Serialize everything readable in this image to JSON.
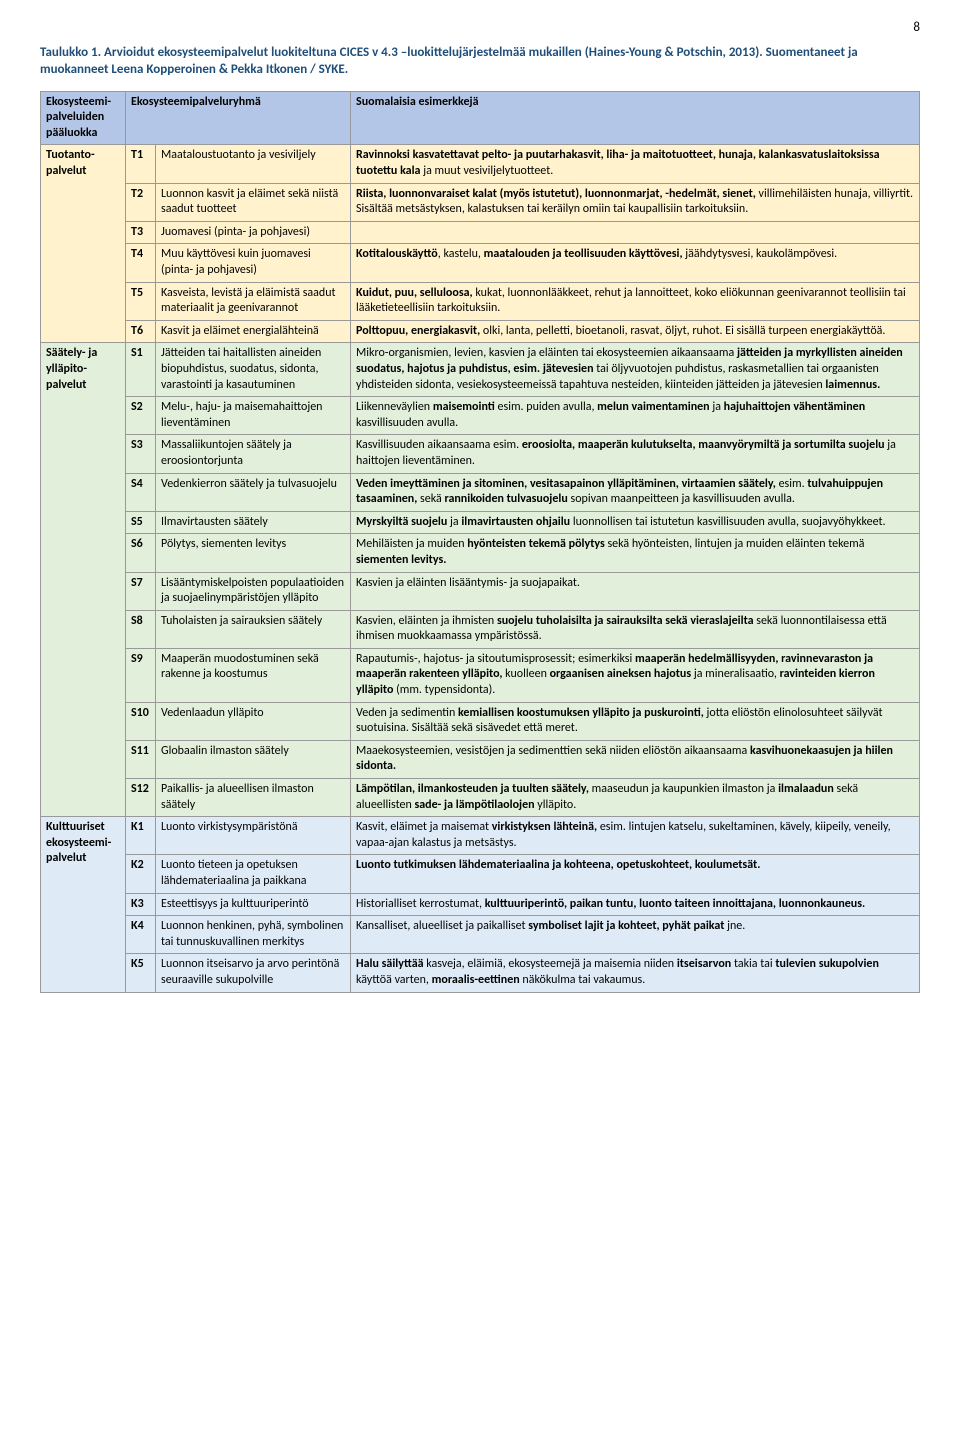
{
  "pageNumber": "8",
  "caption": "Taulukko 1. Arvioidut ekosysteemipalvelut luokiteltuna CICES v 4.3 –luokittelujärjestelmää mukaillen (Haines-Young & Potschin, 2013). Suomentaneet ja muokanneet Leena Kopperoinen & Pekka Itkonen / SYKE.",
  "header": {
    "col1": "Ekosysteemi-palveluiden pääluokka",
    "col2": "Ekosysteemipalveluryhmä",
    "col3": "Suomalaisia esimerkkejä"
  },
  "cats": [
    {
      "label": "Tuotanto-palvelut",
      "rows": [
        {
          "code": "T1",
          "group": "Maataloustuotanto ja vesiviljely",
          "ex": "<b>Ravinnoksi kasvatettavat pelto- ja puutarhakasvit, liha- ja maitotuotteet, hunaja, kalankasvatuslaitoksissa tuotettu kala</b> ja muut vesiviljelytuotteet."
        },
        {
          "code": "T2",
          "group": "Luonnon kasvit ja eläimet sekä niistä saadut tuotteet",
          "ex": "<b>Riista, luonnonvaraiset kalat (myös istutetut), luonnonmarjat, -hedelmät, sienet,</b> villimehiläisten hunaja, villiyrtit. Sisältää metsästyksen, kalastuksen tai keräilyn omiin tai kaupallisiin tarkoituksiin."
        },
        {
          "code": "T3",
          "group": "Juomavesi (pinta- ja pohjavesi)",
          "ex": ""
        },
        {
          "code": "T4",
          "group": "Muu käyttövesi kuin juomavesi (pinta- ja pohjavesi)",
          "ex": "<b>Kotitalouskäyttö</b>, kastelu, <b>maatalouden ja teollisuuden käyttövesi,</b> jäähdytysvesi, kaukolämpövesi."
        },
        {
          "code": "T5",
          "group": "Kasveista, levistä ja eläimistä saadut materiaalit ja geenivarannot",
          "ex": "<b>Kuidut, puu, selluloosa,</b> kukat, luonnonlääkkeet, rehut ja lannoitteet, koko eliökunnan geenivarannot teollisiin tai lääketieteellisiin tarkoituksiin."
        },
        {
          "code": "T6",
          "group": "Kasvit ja eläimet energialähteinä",
          "ex": "<b>Polttopuu, energiakasvit,</b> olki, lanta, pelletti, bioetanoli, rasvat, öljyt, ruhot. Ei sisällä turpeen energiakäyttöä."
        }
      ]
    },
    {
      "label": "Säätely- ja ylläpito-palvelut",
      "rows": [
        {
          "code": "S1",
          "group": "Jätteiden tai haitallisten aineiden biopuhdistus, suodatus, sidonta, varastointi ja kasautuminen",
          "ex": "Mikro-organismien, levien, kasvien ja eläinten tai ekosysteemien aikaansaama <b>jätteiden ja myrkyllisten aineiden suodatus, hajotus ja puhdistus, esim. jätevesien</b> tai öljyvuotojen puhdistus, raskasmetallien tai orgaanisten yhdisteiden sidonta, vesiekosysteemeissä tapahtuva nesteiden, kiinteiden jätteiden ja jätevesien <b>laimennus.</b>"
        },
        {
          "code": "S2",
          "group": "Melu-, haju- ja maisemahaittojen lieventäminen",
          "ex": "Liikenneväylien <b>maisemointi</b> esim. puiden avulla, <b>melun vaimentaminen</b> ja <b>hajuhaittojen vähentäminen</b> kasvillisuuden avulla."
        },
        {
          "code": "S3",
          "group": "Massaliikuntojen säätely ja eroosiontorjunta",
          "ex": "Kasvillisuuden aikaansaama esim. <b>eroosiolta, maaperän kulutukselta, maanvyörymiltä ja sortumilta suojelu</b> ja haittojen lieventäminen."
        },
        {
          "code": "S4",
          "group": "Vedenkierron säätely ja tulvasuojelu",
          "ex": "<b>Veden imeyttäminen ja sitominen, vesitasapainon ylläpitäminen, virtaamien säätely,</b> esim. <b>tulvahuippujen tasaaminen,</b> sekä <b>rannikoiden tulvasuojelu</b> sopivan maanpeitteen ja kasvillisuuden avulla."
        },
        {
          "code": "S5",
          "group": "Ilmavirtausten säätely",
          "ex": "<b>Myrskyiltä suojelu</b> ja <b>ilmavirtausten ohjailu</b> luonnollisen tai istutetun kasvillisuuden avulla, suojavyöhykkeet."
        },
        {
          "code": "S6",
          "group": "Pölytys, siementen levitys",
          "ex": "Mehiläisten ja muiden <b>hyönteisten tekemä pölytys</b> sekä hyönteisten, lintujen ja muiden eläinten tekemä <b>siementen levitys.</b>"
        },
        {
          "code": "S7",
          "group": "Lisääntymiskelpoisten populaatioiden ja suojaelinympäristöjen ylläpito",
          "ex": "Kasvien ja eläinten lisääntymis- ja suojapaikat."
        },
        {
          "code": "S8",
          "group": "Tuholaisten ja sairauksien säätely",
          "ex": "Kasvien, eläinten ja ihmisten <b>suojelu tuholaisilta ja sairauksilta sekä vieraslajeilta</b> sekä luonnontilaisessa että ihmisen muokkaamassa ympäristössä."
        },
        {
          "code": "S9",
          "group": "Maaperän muodostuminen sekä rakenne ja koostumus",
          "ex": "Rapautumis-, hajotus- ja sitoutumisprosessit; esimerkiksi <b>maaperän hedelmällisyyden, ravinnevaraston ja maaperän rakenteen ylläpito,</b> kuolleen <b>orgaanisen aineksen hajotus</b> ja mineralisaatio, <b>ravinteiden kierron ylläpito</b> (mm. typensidonta)."
        },
        {
          "code": "S10",
          "group": "Vedenlaadun ylläpito",
          "ex": "Veden ja sedimentin <b>kemiallisen koostumuksen ylläpito ja puskurointi,</b> jotta eliöstön elinolosuhteet säilyvät suotuisina. Sisältää sekä sisävedet että meret."
        },
        {
          "code": "S11",
          "group": "Globaalin ilmaston säätely",
          "ex": "Maaekosysteemien, vesistöjen ja sedimenttien sekä niiden eliöstön aikaansaama <b>kasvihuonekaasujen ja hiilen sidonta.</b>"
        },
        {
          "code": "S12",
          "group": "Paikallis- ja alueellisen ilmaston säätely",
          "ex": "<b>Lämpötilan, ilmankosteuden ja tuulten säätely,</b> maaseudun ja kaupunkien ilmaston ja <b>ilmalaadun</b> sekä alueellisten <b>sade- ja lämpötilaolojen</b> ylläpito."
        }
      ]
    },
    {
      "label": "Kulttuuriset ekosysteemi-palvelut",
      "rows": [
        {
          "code": "K1",
          "group": "Luonto virkistysympäristönä",
          "ex": "Kasvit, eläimet ja maisemat <b>virkistyksen lähteinä,</b> esim. lintujen katselu, sukeltaminen, kävely, kiipeily, veneily, vapaa-ajan kalastus ja metsästys."
        },
        {
          "code": "K2",
          "group": "Luonto tieteen ja opetuksen lähdemateriaalina ja paikkana",
          "ex": "<b>Luonto tutkimuksen lähdemateriaalina ja kohteena, opetuskohteet, koulumetsät.</b>"
        },
        {
          "code": "K3",
          "group": "Esteettisyys ja kulttuuriperintö",
          "ex": "Historialliset kerrostumat, <b>kulttuuriperintö, paikan tuntu, luonto taiteen innoittajana, luonnonkauneus.</b>"
        },
        {
          "code": "K4",
          "group": "Luonnon henkinen, pyhä, symbolinen tai tunnuskuvallinen merkitys",
          "ex": "Kansalliset, alueelliset ja paikalliset <b>symboliset lajit ja kohteet, pyhät paikat</b> jne."
        },
        {
          "code": "K5",
          "group": "Luonnon itseisarvo ja arvo perintönä seuraaville sukupolville",
          "ex": "<b>Halu säilyttää</b> kasveja, eläimiä, ekosysteemejä ja maisemia niiden <b>itseisarvon</b> takia tai <b>tulevien sukupolvien</b> käyttöä varten, <b>moraalis-eettinen</b> näkökulma tai vakaumus."
        }
      ]
    }
  ],
  "styling": {
    "colWidths": {
      "cat": "85px",
      "code": "30px",
      "group": "195px"
    },
    "headerBg": "#b4c6e7",
    "catBg": [
      "#fff2cc",
      "#e2efda",
      "#deebf7"
    ],
    "borderColor": "#999999",
    "captionColor": "#1f4e79",
    "fontSize": 12,
    "pageWidth": 960,
    "pageHeight": 1447
  }
}
